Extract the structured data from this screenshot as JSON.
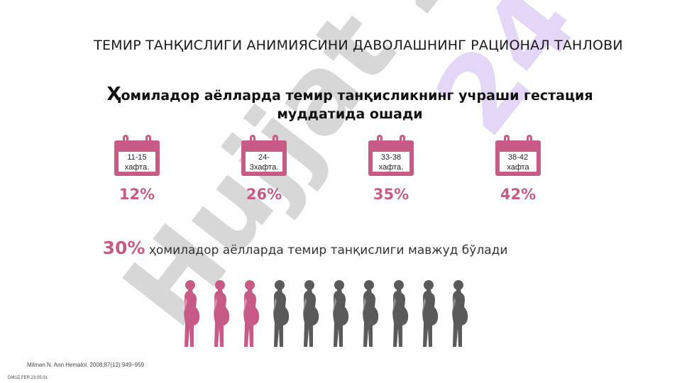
{
  "title": "ТЕМИР ТАНҚИСЛИГИ АНИМИЯСИНИ ДАВОЛАШНИНГ РАЦИОНАЛ ТАНЛОВИ",
  "subtitle": {
    "first_letter": "Ҳ",
    "rest": "омиладор аёлларда темир танқисликнинг учраши гестация муддатида ошади"
  },
  "watermark": {
    "text": "Hujjat 24"
  },
  "calendars": [
    {
      "label_line1": "11-15",
      "label_line2": "хафта.",
      "percent": "12%"
    },
    {
      "label_line1": "24-",
      "label_line2": "3хафта.",
      "percent": "26%"
    },
    {
      "label_line1": "33-38",
      "label_line2": "хафта.",
      "percent": "35%"
    },
    {
      "label_line1": "38-42",
      "label_line2": "хафта",
      "percent": "42%"
    }
  ],
  "stat": {
    "value": "30%",
    "text": "ҳомиладор аёлларда темир танқислиги мавжуд бўлади"
  },
  "figures": {
    "total": 10,
    "highlighted": 3
  },
  "colors": {
    "accent": "#c75b86",
    "neutral": "#5a5a5a"
  },
  "citation": "Milman N. Ann Hematol. 2008;87(12):949–959",
  "code": "DMUZ.FER.23.05.01"
}
